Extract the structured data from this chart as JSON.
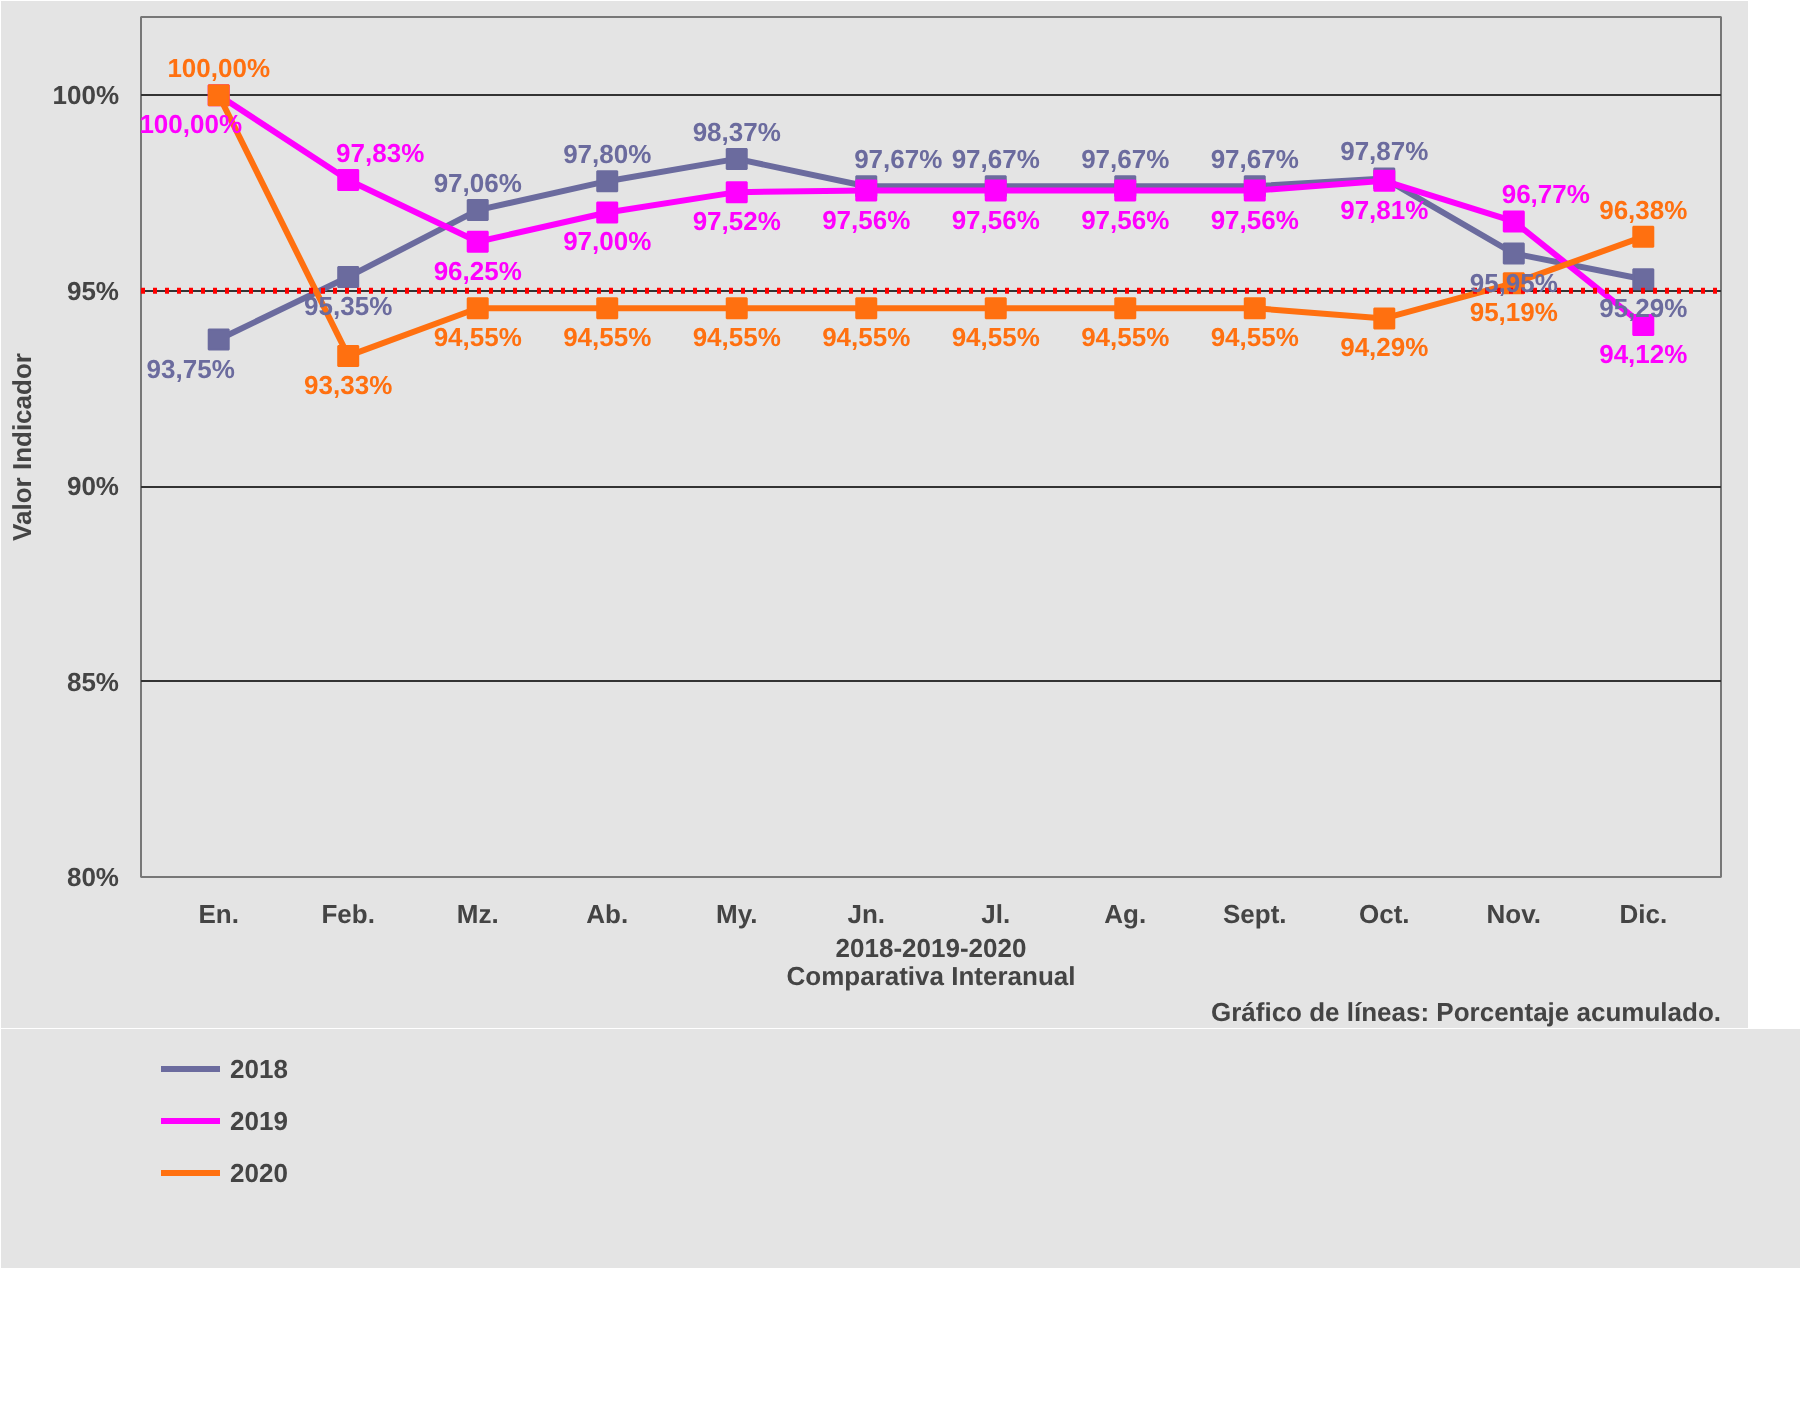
{
  "chart_data": {
    "type": "line",
    "title": "2018-2019-2020\nComparativa Interanual",
    "ylabel": "Valor Indicador",
    "annotations": [
      "Gráfico de líneas: Porcentaje acumulado."
    ],
    "categories": [
      "En.",
      "Feb.",
      "Mz.",
      "Ab.",
      "My.",
      "Jn.",
      "Jl.",
      "Ag.",
      "Sept.",
      "Oct.",
      "Nov.",
      "Dic."
    ],
    "series": [
      {
        "name": "2018",
        "color": "#6b6b9e",
        "values": [
          93.75,
          95.35,
          97.06,
          97.8,
          98.37,
          97.67,
          97.67,
          97.67,
          97.67,
          97.87,
          95.95,
          95.29
        ],
        "value_labels": [
          "93,75%",
          "95,35%",
          "97,06%",
          "97,80%",
          "98,37%",
          "97,67%",
          "97,67%",
          "97,67%",
          "97,67%",
          "97,87%",
          "95,95%",
          "95,29%"
        ]
      },
      {
        "name": "2019",
        "color": "#ff00ff",
        "values": [
          100,
          97.83,
          96.25,
          97.0,
          97.52,
          97.56,
          97.56,
          97.56,
          97.56,
          97.81,
          96.77,
          94.12
        ],
        "value_labels": [
          "100,00%",
          "97,83%",
          "96,25%",
          "97,00%",
          "97,52%",
          "97,56%",
          "97,56%",
          "97,56%",
          "97,56%",
          "97,81%",
          "96,77%",
          "94,12%"
        ]
      },
      {
        "name": "2020",
        "color": "#ff7010",
        "values": [
          100,
          93.33,
          94.55,
          94.55,
          94.55,
          94.55,
          94.55,
          94.55,
          94.55,
          94.29,
          95.19,
          96.38
        ],
        "value_labels": [
          "100,00%",
          "93,33%",
          "94,55%",
          "94,55%",
          "94,55%",
          "94,55%",
          "94,55%",
          "94,55%",
          "94,55%",
          "94,29%",
          "95,19%",
          "96,38%"
        ]
      }
    ],
    "ylim": [
      80,
      102
    ],
    "yticks": [
      {
        "value": 80,
        "label": "80%"
      },
      {
        "value": 85,
        "label": "85%"
      },
      {
        "value": 90,
        "label": "90%"
      },
      {
        "value": 95,
        "label": "95%"
      },
      {
        "value": 100,
        "label": "100%"
      }
    ],
    "ref_lines": [
      {
        "axis": "y",
        "value": 95,
        "color": "#ff0000",
        "line_style": "dotted"
      }
    ],
    "grid": "y",
    "legend": "bottom left",
    "marker": "square",
    "line_style": "solid"
  }
}
